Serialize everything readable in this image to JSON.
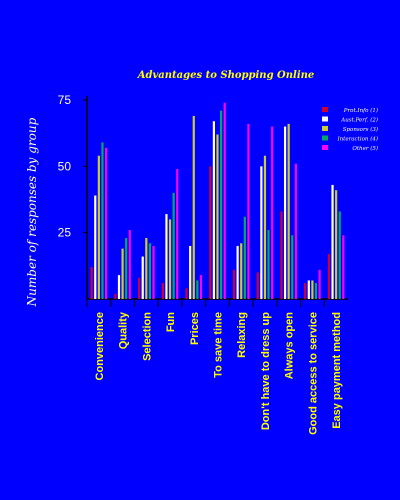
{
  "chart_data": {
    "type": "bar",
    "title": "Advantages to Shopping Online",
    "xlabel": "",
    "ylabel": "Number of responses by group",
    "ylim": [
      0,
      75
    ],
    "yticks": [
      25,
      50,
      75
    ],
    "grid": false,
    "legend_position": "top-right",
    "categories": [
      "Convenience",
      "Quality",
      "Selection",
      "Fun",
      "Prices",
      "To save time",
      "Relaxing",
      "Don't have to dress up",
      "Always open",
      "Good access to service",
      "Easy payment method"
    ],
    "series": [
      {
        "name": "Prot.Info (1)",
        "color": "#cc0033",
        "values": [
          12,
          2,
          8,
          6,
          4,
          50,
          11,
          10,
          33,
          6,
          17
        ]
      },
      {
        "name": "Aust.Perf. (2)",
        "color": "#ffffff",
        "values": [
          39,
          9,
          16,
          32,
          20,
          67,
          20,
          50,
          65,
          7,
          43
        ]
      },
      {
        "name": "Sponsors (3)",
        "color": "#cccc33",
        "values": [
          54,
          19,
          23,
          30,
          69,
          62,
          21,
          54,
          66,
          7,
          41
        ]
      },
      {
        "name": "Interaction (4)",
        "color": "#00aa66",
        "values": [
          59,
          23,
          21,
          40,
          7,
          71,
          31,
          26,
          24,
          6,
          33
        ]
      },
      {
        "name": "Other (5)",
        "color": "#ff00ff",
        "values": [
          57,
          26,
          20,
          49,
          9,
          74,
          66,
          65,
          51,
          11,
          24
        ]
      }
    ]
  }
}
